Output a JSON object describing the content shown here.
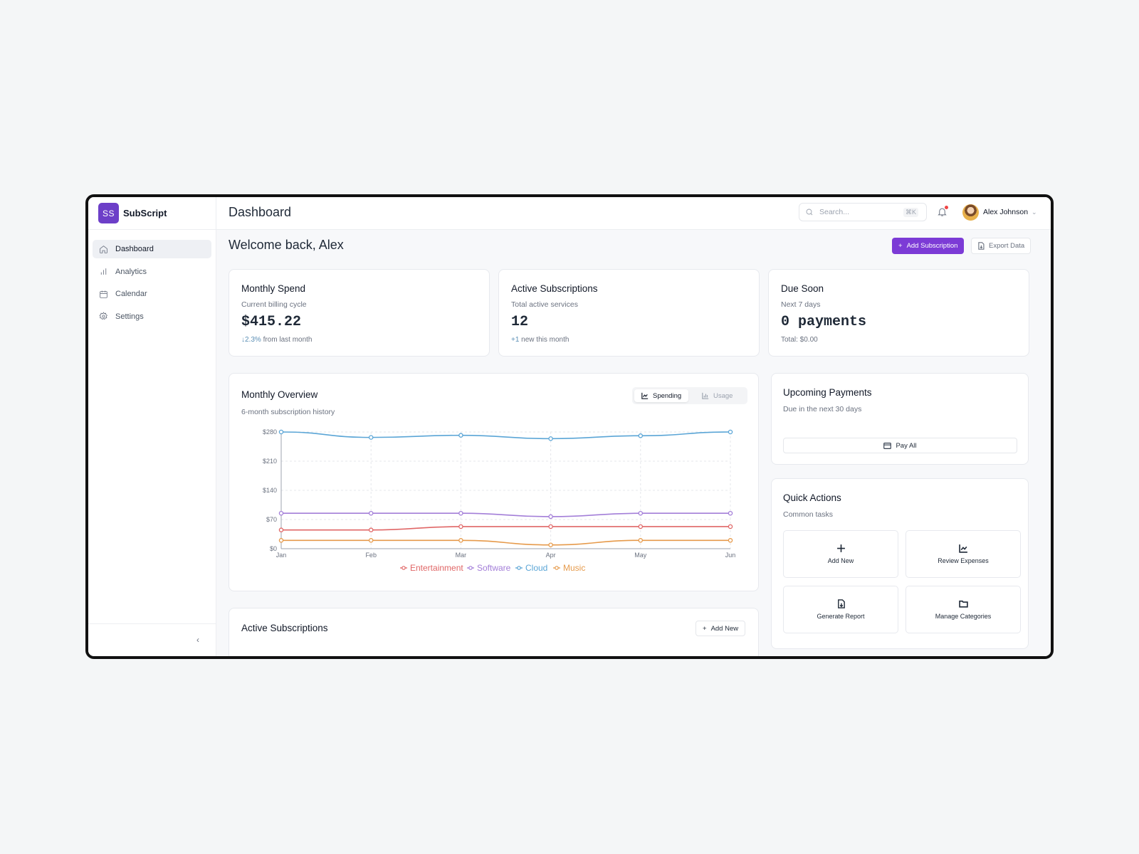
{
  "brand": {
    "logo": "SS",
    "name": "SubScript"
  },
  "sidebar": {
    "items": [
      {
        "label": "Dashboard",
        "icon": "home-icon",
        "active": true
      },
      {
        "label": "Analytics",
        "icon": "bar-chart-icon",
        "active": false
      },
      {
        "label": "Calendar",
        "icon": "calendar-icon",
        "active": false
      },
      {
        "label": "Settings",
        "icon": "gear-icon",
        "active": false
      }
    ],
    "collapse_glyph": "‹"
  },
  "header": {
    "title": "Dashboard",
    "search_placeholder": "Search...",
    "search_shortcut": "⌘K",
    "user_name": "Alex Johnson"
  },
  "welcome": {
    "title": "Welcome back, Alex",
    "add_subscription": "Add Subscription",
    "export_data": "Export Data"
  },
  "stats": [
    {
      "title": "Monthly Spend",
      "subtitle": "Current billing cycle",
      "value": "$415.22",
      "trend": "↓2.3%",
      "trend_text": " from last month"
    },
    {
      "title": "Active Subscriptions",
      "subtitle": "Total active services",
      "value": "12",
      "trend": "+1",
      "trend_text": " new this month"
    },
    {
      "title": "Due Soon",
      "subtitle": "Next 7 days",
      "value": "0 payments",
      "trend": "",
      "trend_text": "Total: $0.00"
    }
  ],
  "overview": {
    "title": "Monthly Overview",
    "subtitle": "6-month subscription history",
    "toggle": {
      "spending": "Spending",
      "usage": "Usage"
    }
  },
  "chart_data": {
    "type": "line",
    "categories": [
      "Jan",
      "Feb",
      "Mar",
      "Apr",
      "May",
      "Jun"
    ],
    "y_ticks": [
      0,
      70,
      140,
      210,
      280
    ],
    "y_tick_labels": [
      "$0",
      "$70",
      "$140",
      "$210",
      "$280"
    ],
    "ylim": [
      0,
      280
    ],
    "series": [
      {
        "name": "Entertainment",
        "color": "#e06666",
        "values": [
          45,
          45,
          53,
          53,
          53,
          53
        ]
      },
      {
        "name": "Software",
        "color": "#a37ed8",
        "values": [
          85,
          85,
          85,
          77,
          85,
          85
        ]
      },
      {
        "name": "Cloud",
        "color": "#5aa5d6",
        "values": [
          280,
          267,
          272,
          264,
          271,
          280
        ]
      },
      {
        "name": "Music",
        "color": "#e69a4b",
        "values": [
          20,
          20,
          20,
          9,
          20,
          20
        ]
      }
    ],
    "legend_position": "bottom",
    "grid": true
  },
  "upcoming": {
    "title": "Upcoming Payments",
    "subtitle": "Due in the next 30 days",
    "pay_all": "Pay All"
  },
  "quick": {
    "title": "Quick Actions",
    "subtitle": "Common tasks",
    "tiles": [
      "Add New",
      "Review Expenses",
      "Generate Report",
      "Manage Categories"
    ]
  },
  "active_subs": {
    "title": "Active Subscriptions",
    "add_new": "Add New"
  }
}
